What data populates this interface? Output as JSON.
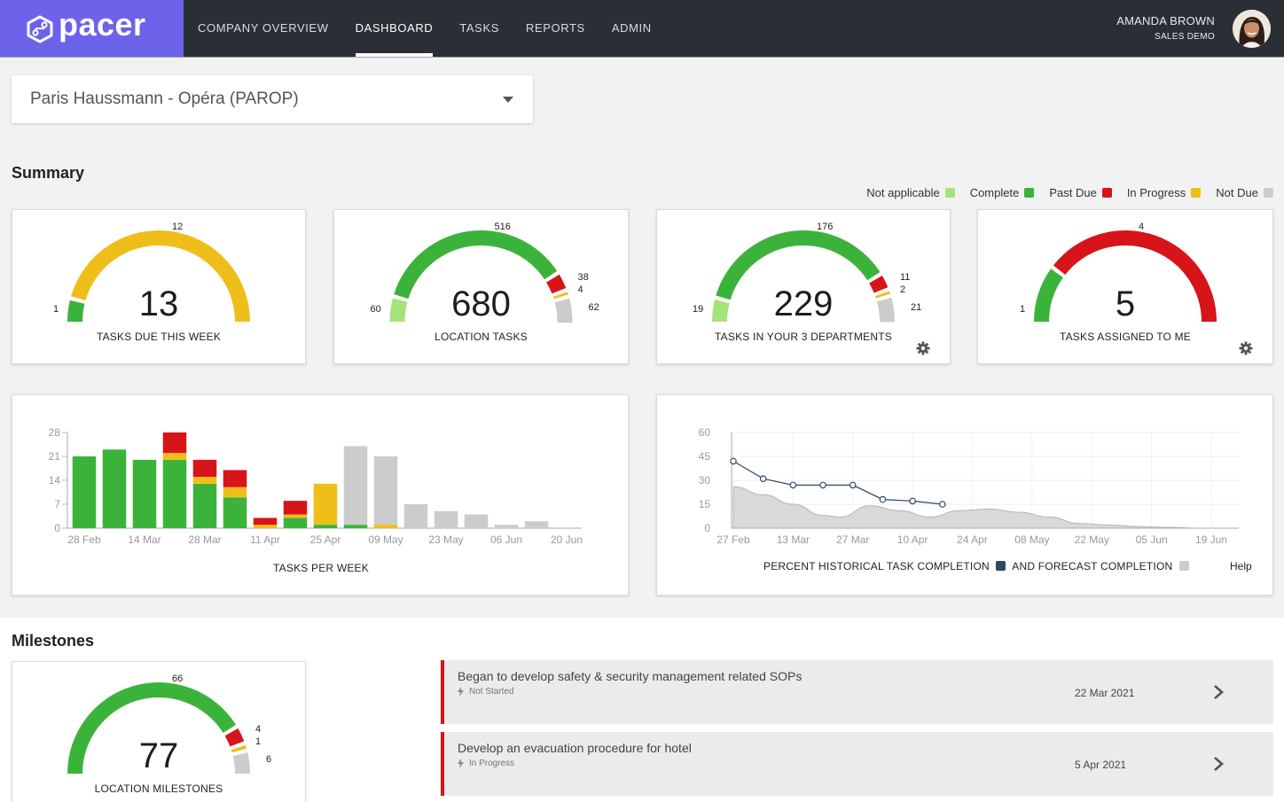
{
  "brand": {
    "name": "pacer"
  },
  "nav": {
    "items": [
      {
        "label": "COMPANY OVERVIEW"
      },
      {
        "label": "DASHBOARD"
      },
      {
        "label": "TASKS"
      },
      {
        "label": "REPORTS"
      },
      {
        "label": "ADMIN"
      }
    ],
    "active_index": 1
  },
  "user": {
    "name": "AMANDA BROWN",
    "role": "SALES DEMO"
  },
  "location_select": {
    "value": "Paris Haussmann - Opéra (PAROP)"
  },
  "summary": {
    "title": "Summary",
    "legend": [
      {
        "label": "Not applicable",
        "color": "#a5e27a"
      },
      {
        "label": "Complete",
        "color": "#3bb33b"
      },
      {
        "label": "Past Due",
        "color": "#d7141a"
      },
      {
        "label": "In Progress",
        "color": "#f0be1a"
      },
      {
        "label": "Not Due",
        "color": "#cccccc"
      }
    ],
    "gauges": [
      {
        "label": "TASKS DUE THIS WEEK",
        "total": "13",
        "left_value": "1",
        "top_value": "12",
        "right_values": [],
        "gear": false,
        "segments": [
          {
            "status": "Complete",
            "value": 1
          },
          {
            "status": "In Progress",
            "value": 12
          }
        ]
      },
      {
        "label": "LOCATION TASKS",
        "total": "680",
        "left_value": "60",
        "top_value": "516",
        "right_values": [
          "38",
          "4",
          "62"
        ],
        "gear": false,
        "segments": [
          {
            "status": "Not applicable",
            "value": 60
          },
          {
            "status": "Complete",
            "value": 516
          },
          {
            "status": "Past Due",
            "value": 38
          },
          {
            "status": "In Progress",
            "value": 4
          },
          {
            "status": "Not Due",
            "value": 62
          }
        ]
      },
      {
        "label": "TASKS IN YOUR 3 DEPARTMENTS",
        "total": "229",
        "left_value": "19",
        "top_value": "176",
        "right_values": [
          "11",
          "2",
          "21"
        ],
        "gear": true,
        "segments": [
          {
            "status": "Not applicable",
            "value": 19
          },
          {
            "status": "Complete",
            "value": 176
          },
          {
            "status": "Past Due",
            "value": 11
          },
          {
            "status": "In Progress",
            "value": 2
          },
          {
            "status": "Not Due",
            "value": 21
          }
        ]
      },
      {
        "label": "TASKS ASSIGNED TO ME",
        "total": "5",
        "left_value": "1",
        "top_value": "4",
        "right_values": [],
        "gear": true,
        "segments": [
          {
            "status": "Complete",
            "value": 1
          },
          {
            "status": "Past Due",
            "value": 4
          }
        ]
      }
    ]
  },
  "chart_data": [
    {
      "type": "bar",
      "title": "TASKS PER WEEK",
      "stacked": true,
      "ylim": [
        0,
        28
      ],
      "yticks": [
        0,
        7,
        14,
        21,
        28
      ],
      "xticks": [
        "28 Feb",
        "14 Mar",
        "28 Mar",
        "11 Apr",
        "25 Apr",
        "09 May",
        "23 May",
        "06 Jun",
        "20 Jun"
      ],
      "categories": [
        "28 Feb",
        "07 Mar",
        "14 Mar",
        "21 Mar",
        "28 Mar",
        "04 Apr",
        "11 Apr",
        "18 Apr",
        "25 Apr",
        "02 May",
        "09 May",
        "16 May",
        "23 May",
        "30 May",
        "06 Jun",
        "13 Jun",
        "20 Jun"
      ],
      "series": [
        {
          "name": "Complete",
          "color": "#3bb33b",
          "values": [
            21,
            23,
            20,
            20,
            13,
            9,
            0,
            3,
            1,
            1,
            0,
            0,
            0,
            0,
            0,
            0,
            0
          ]
        },
        {
          "name": "In Progress",
          "color": "#f0be1a",
          "values": [
            0,
            0,
            0,
            2,
            2,
            3,
            1,
            1,
            12,
            0,
            1,
            0,
            0,
            0,
            0,
            0,
            0
          ]
        },
        {
          "name": "Past Due",
          "color": "#d7141a",
          "values": [
            0,
            0,
            0,
            6,
            5,
            5,
            2,
            4,
            0,
            0,
            0,
            0,
            0,
            0,
            0,
            0,
            0
          ]
        },
        {
          "name": "Not Due",
          "color": "#cccccc",
          "values": [
            0,
            0,
            0,
            0,
            0,
            0,
            0,
            0,
            0,
            23,
            20,
            7,
            5,
            4,
            1,
            2,
            0
          ]
        }
      ]
    },
    {
      "type": "line",
      "title": "PERCENT HISTORICAL TASK COMPLETION",
      "title2": "AND FORECAST COMPLETION",
      "help_label": "Help",
      "ylim": [
        0,
        60
      ],
      "yticks": [
        0,
        15,
        30,
        45,
        60
      ],
      "xticks": [
        "27 Feb",
        "13 Mar",
        "27 Mar",
        "10 Apr",
        "24 Apr",
        "08 May",
        "22 May",
        "05 Jun",
        "19 Jun"
      ],
      "series": [
        {
          "name": "PERCENT HISTORICAL TASK COMPLETION",
          "kind": "line",
          "color": "#2e4a62",
          "points": [
            [
              "27 Feb",
              42
            ],
            [
              "06 Mar",
              31
            ],
            [
              "13 Mar",
              27
            ],
            [
              "20 Mar",
              27
            ],
            [
              "27 Mar",
              27
            ],
            [
              "03 Apr",
              18
            ],
            [
              "10 Apr",
              17
            ],
            [
              "17 Apr",
              15
            ]
          ]
        },
        {
          "name": "AND FORECAST COMPLETION",
          "kind": "area",
          "color": "#cccccc",
          "points": [
            [
              "27 Feb",
              26
            ],
            [
              "06 Mar",
              21
            ],
            [
              "13 Mar",
              15
            ],
            [
              "20 Mar",
              8
            ],
            [
              "24 Mar",
              7
            ],
            [
              "31 Mar",
              14
            ],
            [
              "07 Apr",
              11
            ],
            [
              "14 Apr",
              7
            ],
            [
              "21 Apr",
              11
            ],
            [
              "28 Apr",
              12
            ],
            [
              "05 May",
              10
            ],
            [
              "12 May",
              7
            ],
            [
              "19 May",
              3
            ],
            [
              "26 May",
              2
            ],
            [
              "02 Jun",
              1
            ],
            [
              "09 Jun",
              0.5
            ],
            [
              "16 Jun",
              0
            ],
            [
              "23 Jun",
              0
            ]
          ]
        }
      ]
    }
  ],
  "milestones": {
    "title": "Milestones",
    "gauge": {
      "label": "LOCATION MILESTONES",
      "total": "77",
      "left_value": "",
      "top_value": "66",
      "right_values": [
        "4",
        "1",
        "6"
      ],
      "segments": [
        {
          "status": "Complete",
          "value": 66
        },
        {
          "status": "Past Due",
          "value": 4
        },
        {
          "status": "In Progress",
          "value": 1
        },
        {
          "status": "Not Due",
          "value": 6
        }
      ]
    },
    "items": [
      {
        "title": "Began to develop safety & security management related SOPs",
        "status": "Not Started",
        "date": "22 Mar 2021"
      },
      {
        "title": "Develop an evacuation procedure for hotel",
        "status": "In Progress",
        "date": "5 Apr 2021"
      }
    ]
  }
}
